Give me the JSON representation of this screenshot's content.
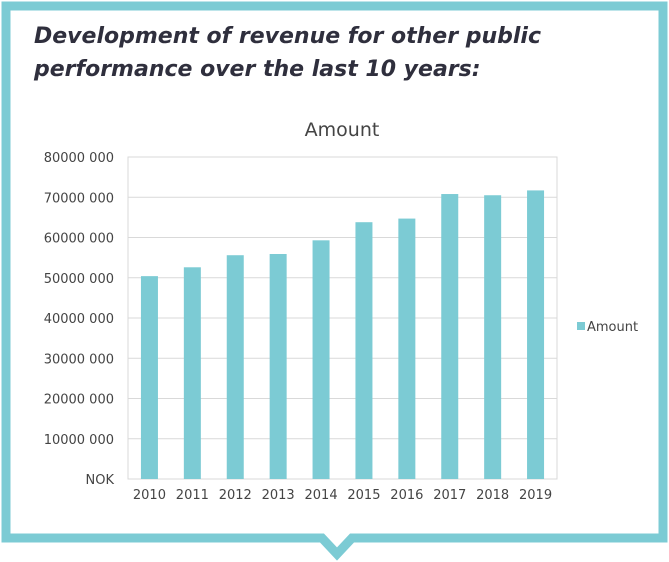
{
  "heading": {
    "line1": "Development of revenue for other public",
    "line2": "performance over the last 10 years:"
  },
  "colors": {
    "frame": "#7ccbd4",
    "bar": "#7ccbd4",
    "text": "#2f2f3d"
  },
  "chart_data": {
    "type": "bar",
    "title": "Amount",
    "xlabel": "",
    "ylabel": "",
    "categories": [
      "2010",
      "2011",
      "2012",
      "2013",
      "2014",
      "2015",
      "2016",
      "2017",
      "2018",
      "2019"
    ],
    "series": [
      {
        "name": "Amount",
        "values": [
          50400000,
          52600000,
          55600000,
          55900000,
          59300000,
          63800000,
          64700000,
          70800000,
          70500000,
          71700000
        ]
      }
    ],
    "ylim": [
      0,
      80000000
    ],
    "yticks": [
      0,
      10000000,
      20000000,
      30000000,
      40000000,
      50000000,
      60000000,
      70000000,
      80000000
    ],
    "ytick_labels": [
      "NOK",
      "10000 000",
      "20000 000",
      "30000 000",
      "40000 000",
      "50000 000",
      "60000 000",
      "70000 000",
      "80000 000"
    ],
    "grid": true,
    "legend": "right"
  }
}
